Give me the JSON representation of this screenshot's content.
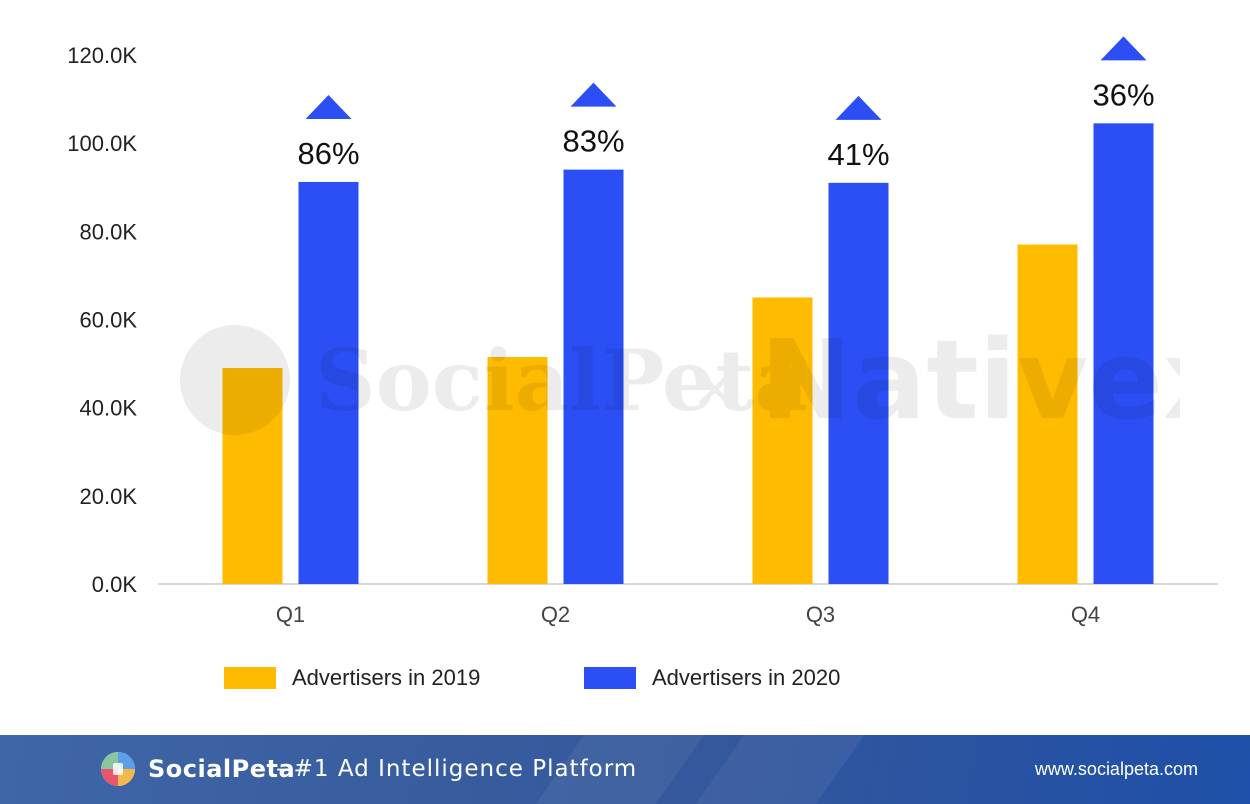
{
  "chart_data": {
    "type": "bar",
    "categories": [
      "Q1",
      "Q2",
      "Q3",
      "Q4"
    ],
    "series": [
      {
        "name": "Advertisers in 2019",
        "color": "#ffbb00",
        "values": [
          49,
          51.5,
          65,
          77
        ]
      },
      {
        "name": "Advertisers in 2020",
        "color": "#2b4ff5",
        "values": [
          91.2,
          94,
          91,
          104.5
        ]
      }
    ],
    "growth_labels": [
      "86%",
      "83%",
      "41%",
      "36%"
    ],
    "growth_marker_color": "#2b4ff5",
    "ylim": [
      0,
      120
    ],
    "y_ticks": [
      0,
      20,
      40,
      60,
      80,
      100,
      120
    ],
    "y_tick_labels": [
      "0.0K",
      "20.0K",
      "40.0K",
      "60.0K",
      "80.0K",
      "100.0K",
      "120.0K"
    ],
    "title": "",
    "xlabel": "",
    "ylabel": "",
    "grid": false,
    "legend_position": "bottom"
  },
  "watermark": {
    "text_left": "SocialPeta",
    "separator": "×",
    "text_right": "Nativex"
  },
  "footer": {
    "brand": "SocialPeta",
    "tagline": "- #1 Ad Intelligence Platform",
    "url": "www.socialpeta.com"
  }
}
